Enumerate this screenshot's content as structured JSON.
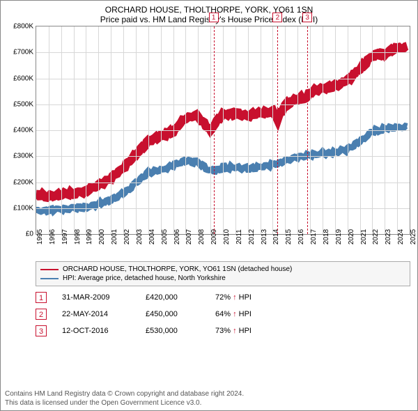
{
  "title": "ORCHARD HOUSE, THOLTHORPE, YORK, YO61 1SN",
  "subtitle": "Price paid vs. HM Land Registry's House Price Index (HPI)",
  "chart": {
    "type": "line",
    "x_min": 1995,
    "x_max": 2025,
    "y_min": 0,
    "y_max": 800000,
    "ytick_step": 100000,
    "xtick_step": 1,
    "grid_color": "#d7d7d7",
    "border_color": "#888888",
    "background": "#ffffff",
    "y_labels": [
      "£0",
      "£100K",
      "£200K",
      "£300K",
      "£400K",
      "£500K",
      "£600K",
      "£700K",
      "£800K"
    ],
    "x_labels": [
      "1995",
      "1996",
      "1997",
      "1998",
      "1999",
      "2000",
      "2001",
      "2002",
      "2003",
      "2004",
      "2005",
      "2006",
      "2007",
      "2008",
      "2009",
      "2010",
      "2011",
      "2012",
      "2013",
      "2014",
      "2015",
      "2016",
      "2017",
      "2018",
      "2019",
      "2020",
      "2021",
      "2022",
      "2023",
      "2024",
      "2025"
    ],
    "series": [
      {
        "name": "ORCHARD HOUSE, THOLTHORPE, YORK, YO61 1SN (detached house)",
        "color": "#c8102e",
        "data": [
          [
            1995,
            155000
          ],
          [
            1996,
            150000
          ],
          [
            1997,
            155000
          ],
          [
            1998,
            160000
          ],
          [
            1999,
            170000
          ],
          [
            2000,
            190000
          ],
          [
            2001,
            220000
          ],
          [
            2002,
            260000
          ],
          [
            2003,
            310000
          ],
          [
            2004,
            360000
          ],
          [
            2005,
            380000
          ],
          [
            2006,
            400000
          ],
          [
            2007,
            450000
          ],
          [
            2008,
            460000
          ],
          [
            2009,
            400000
          ],
          [
            2009.25,
            420000
          ],
          [
            2010,
            465000
          ],
          [
            2011,
            468000
          ],
          [
            2012,
            460000
          ],
          [
            2013,
            470000
          ],
          [
            2014,
            476000
          ],
          [
            2014.39,
            450000
          ],
          [
            2015,
            500000
          ],
          [
            2016,
            525000
          ],
          [
            2016.78,
            530000
          ],
          [
            2017,
            550000
          ],
          [
            2018,
            565000
          ],
          [
            2019,
            575000
          ],
          [
            2020,
            595000
          ],
          [
            2021,
            640000
          ],
          [
            2022,
            690000
          ],
          [
            2023,
            700000
          ],
          [
            2024,
            720000
          ],
          [
            2024.8,
            725000
          ]
        ]
      },
      {
        "name": "HPI: Average price, detached house, North Yorkshire",
        "color": "#4a7fb0",
        "data": [
          [
            1995,
            95000
          ],
          [
            1996,
            95000
          ],
          [
            1997,
            100000
          ],
          [
            1998,
            103000
          ],
          [
            1999,
            107000
          ],
          [
            2000,
            120000
          ],
          [
            2001,
            135000
          ],
          [
            2002,
            160000
          ],
          [
            2003,
            200000
          ],
          [
            2004,
            240000
          ],
          [
            2005,
            250000
          ],
          [
            2006,
            268000
          ],
          [
            2007,
            285000
          ],
          [
            2008,
            280000
          ],
          [
            2009,
            245000
          ],
          [
            2010,
            260000
          ],
          [
            2011,
            260000
          ],
          [
            2012,
            258000
          ],
          [
            2013,
            260000
          ],
          [
            2014,
            272000
          ],
          [
            2015,
            285000
          ],
          [
            2016,
            300000
          ],
          [
            2017,
            308000
          ],
          [
            2018,
            315000
          ],
          [
            2019,
            318000
          ],
          [
            2020,
            330000
          ],
          [
            2021,
            360000
          ],
          [
            2022,
            400000
          ],
          [
            2023,
            410000
          ],
          [
            2024,
            415000
          ],
          [
            2024.8,
            415000
          ]
        ]
      }
    ],
    "markers": [
      {
        "n": "1",
        "x": 2009.25,
        "y": 420000
      },
      {
        "n": "2",
        "x": 2014.39,
        "y": 450000
      },
      {
        "n": "3",
        "x": 2016.78,
        "y": 530000
      }
    ]
  },
  "legend": [
    {
      "label": "ORCHARD HOUSE, THOLTHORPE, YORK, YO61 1SN (detached house)",
      "color": "#c8102e"
    },
    {
      "label": "HPI: Average price, detached house, North Yorkshire",
      "color": "#4a7fb0"
    }
  ],
  "events": [
    {
      "n": "1",
      "date": "31-MAR-2009",
      "price": "£420,000",
      "delta": "72%",
      "arrow": "↑",
      "delta_label": "HPI"
    },
    {
      "n": "2",
      "date": "22-MAY-2014",
      "price": "£450,000",
      "delta": "64%",
      "arrow": "↑",
      "delta_label": "HPI"
    },
    {
      "n": "3",
      "date": "12-OCT-2016",
      "price": "£530,000",
      "delta": "73%",
      "arrow": "↑",
      "delta_label": "HPI"
    }
  ],
  "footer_line1": "Contains HM Land Registry data © Crown copyright and database right 2024.",
  "footer_line2": "This data is licensed under the Open Government Licence v3.0."
}
